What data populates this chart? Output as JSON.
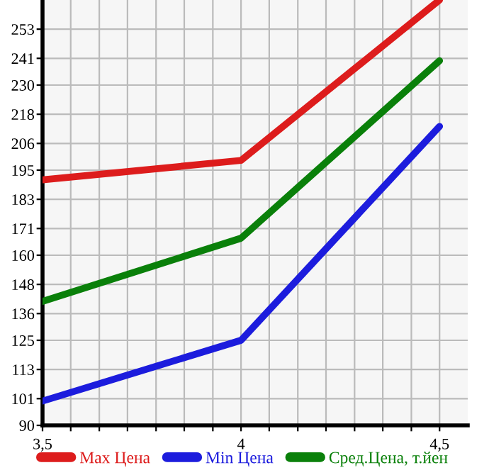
{
  "chart_data": {
    "type": "line",
    "x": [
      3.5,
      4,
      4.5
    ],
    "series": [
      {
        "name": "Max Цена",
        "color": "#dd1c1c",
        "values": [
          191,
          199,
          265
        ]
      },
      {
        "name": "Min Цена",
        "color": "#1c1cdd",
        "values": [
          100,
          125,
          213
        ]
      },
      {
        "name": "Сред.Цена, т.йен",
        "color": "#0a800a",
        "values": [
          141,
          167,
          240
        ]
      }
    ],
    "xlim": [
      3.5,
      4.571
    ],
    "xticks": [
      {
        "value": 3.5,
        "label": "3,5"
      },
      {
        "value": 3.571,
        "label": null
      },
      {
        "value": 3.643,
        "label": null
      },
      {
        "value": 3.714,
        "label": null
      },
      {
        "value": 3.786,
        "label": null
      },
      {
        "value": 3.857,
        "label": null
      },
      {
        "value": 3.929,
        "label": null
      },
      4,
      {
        "value": 4.071,
        "label": null
      },
      {
        "value": 4.143,
        "label": null
      },
      {
        "value": 4.214,
        "label": null
      },
      {
        "value": 4.286,
        "label": null
      },
      {
        "value": 4.357,
        "label": null
      },
      {
        "value": 4.429,
        "label": null
      },
      {
        "value": 4.5,
        "label": "4,5"
      }
    ],
    "ylim": [
      90,
      265
    ],
    "yticks": [
      90,
      101,
      113,
      125,
      136,
      148,
      160,
      171,
      183,
      195,
      206,
      218,
      230,
      241,
      253
    ],
    "grid": true,
    "legend": "bottom",
    "marker": "none",
    "line_style": "solid"
  }
}
